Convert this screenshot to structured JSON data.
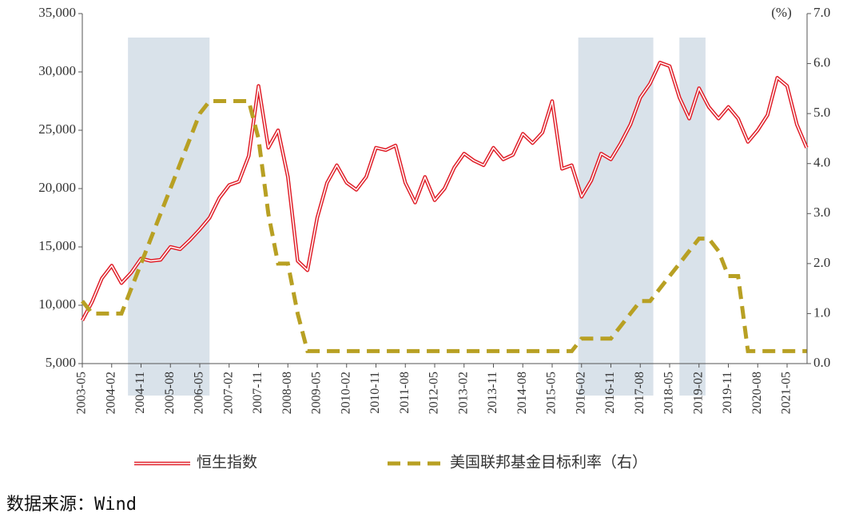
{
  "chart_data": {
    "type": "line",
    "source": "数据来源：Wind",
    "y2_unit_label": "(%)",
    "x": [
      "2003-05",
      "2003-08",
      "2003-11",
      "2004-02",
      "2004-05",
      "2004-08",
      "2004-11",
      "2005-02",
      "2005-05",
      "2005-08",
      "2005-11",
      "2006-02",
      "2006-05",
      "2006-08",
      "2006-11",
      "2007-02",
      "2007-05",
      "2007-08",
      "2007-11",
      "2008-02",
      "2008-05",
      "2008-08",
      "2008-11",
      "2009-02",
      "2009-05",
      "2009-08",
      "2009-11",
      "2010-02",
      "2010-05",
      "2010-08",
      "2010-11",
      "2011-02",
      "2011-05",
      "2011-08",
      "2011-11",
      "2012-02",
      "2012-05",
      "2012-08",
      "2012-11",
      "2013-02",
      "2013-05",
      "2013-08",
      "2013-11",
      "2014-02",
      "2014-05",
      "2014-08",
      "2014-11",
      "2015-02",
      "2015-05",
      "2015-08",
      "2015-11",
      "2016-02",
      "2016-05",
      "2016-08",
      "2016-11",
      "2017-02",
      "2017-05",
      "2017-08",
      "2017-11",
      "2018-02",
      "2018-05",
      "2018-08",
      "2018-11",
      "2019-02",
      "2019-05",
      "2019-08",
      "2019-11",
      "2020-02",
      "2020-05",
      "2020-08",
      "2020-11",
      "2021-02",
      "2021-05",
      "2021-08",
      "2021-11"
    ],
    "xticks": [
      "2003-05",
      "2004-02",
      "2004-11",
      "2005-08",
      "2006-05",
      "2007-02",
      "2007-11",
      "2008-08",
      "2009-05",
      "2010-02",
      "2010-11",
      "2011-08",
      "2012-05",
      "2013-02",
      "2013-11",
      "2014-08",
      "2015-05",
      "2016-02",
      "2016-11",
      "2017-08",
      "2018-05",
      "2019-02",
      "2019-11",
      "2020-08",
      "2021-05"
    ],
    "series": [
      {
        "name": "恒生指数",
        "color": "#e0202a",
        "axis": "y",
        "values": [
          8700,
          10300,
          12300,
          13400,
          11900,
          12800,
          14000,
          13800,
          13900,
          15000,
          14800,
          15600,
          16500,
          17500,
          19200,
          20300,
          20600,
          22800,
          28800,
          23500,
          25000,
          21000,
          13800,
          13000,
          17500,
          20500,
          22000,
          20500,
          19900,
          21000,
          23500,
          23300,
          23700,
          20500,
          18800,
          21000,
          19000,
          20000,
          21800,
          23000,
          22400,
          22000,
          23500,
          22500,
          22900,
          24700,
          23900,
          24800,
          27500,
          21700,
          22000,
          19300,
          20700,
          23000,
          22500,
          23900,
          25500,
          27800,
          29000,
          30800,
          30500,
          27800,
          26000,
          28600,
          27000,
          26000,
          27000,
          26000,
          24000,
          25000,
          26300,
          29500,
          28800,
          25500,
          23500
        ]
      },
      {
        "name": "美国联邦基金目标利率（右）",
        "color": "#b8a023",
        "axis": "y2",
        "values": [
          1.25,
          1.0,
          1.0,
          1.0,
          1.0,
          1.5,
          2.0,
          2.5,
          3.0,
          3.5,
          4.0,
          4.5,
          5.0,
          5.25,
          5.25,
          5.25,
          5.25,
          5.25,
          4.5,
          3.0,
          2.0,
          2.0,
          1.0,
          0.25,
          0.25,
          0.25,
          0.25,
          0.25,
          0.25,
          0.25,
          0.25,
          0.25,
          0.25,
          0.25,
          0.25,
          0.25,
          0.25,
          0.25,
          0.25,
          0.25,
          0.25,
          0.25,
          0.25,
          0.25,
          0.25,
          0.25,
          0.25,
          0.25,
          0.25,
          0.25,
          0.25,
          0.5,
          0.5,
          0.5,
          0.5,
          0.75,
          1.0,
          1.25,
          1.25,
          1.5,
          1.75,
          2.0,
          2.25,
          2.5,
          2.5,
          2.25,
          1.75,
          1.75,
          0.25,
          0.25,
          0.25,
          0.25,
          0.25,
          0.25,
          0.25
        ]
      }
    ],
    "shaded_periods": [
      {
        "start": "2004-07",
        "end": "2006-08"
      },
      {
        "start": "2016-01",
        "end": "2017-12"
      },
      {
        "start": "2018-08",
        "end": "2019-04"
      }
    ],
    "ylim": [
      5000,
      35000
    ],
    "yticks": [
      {
        "value": 5000,
        "label": "5,000"
      },
      {
        "value": 10000,
        "label": "10,000"
      },
      {
        "value": 15000,
        "label": "15,000"
      },
      {
        "value": 20000,
        "label": "20,000"
      },
      {
        "value": 25000,
        "label": "25,000"
      },
      {
        "value": 30000,
        "label": "30,000"
      },
      {
        "value": 35000,
        "label": "35,000"
      }
    ],
    "y2lim": [
      0,
      7
    ],
    "y2ticks": [
      {
        "value": 0,
        "label": "0.0"
      },
      {
        "value": 1,
        "label": "1.0"
      },
      {
        "value": 2,
        "label": "2.0"
      },
      {
        "value": 3,
        "label": "3.0"
      },
      {
        "value": 4,
        "label": "4.0"
      },
      {
        "value": 5,
        "label": "5.0"
      },
      {
        "value": 6,
        "label": "6.0"
      },
      {
        "value": 7,
        "label": "7.0"
      }
    ],
    "legend": "bottom"
  }
}
